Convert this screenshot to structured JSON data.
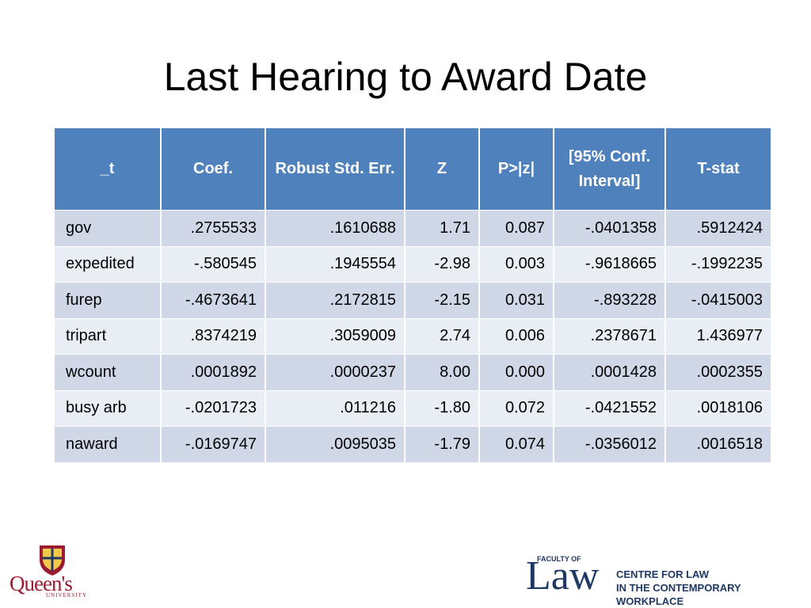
{
  "title": "Last Hearing to Award Date",
  "table": {
    "header": [
      "_t",
      "Coef.",
      "Robust Std. Err.",
      "Z",
      "P>|z|",
      "[95% Conf. Interval]",
      "T-stat"
    ],
    "rows": [
      [
        "gov",
        ".2755533",
        ".1610688",
        "1.71",
        "0.087",
        "-.0401358",
        ".5912424"
      ],
      [
        "expedited",
        "-.580545",
        ".1945554",
        "-2.98",
        "0.003",
        "-.9618665",
        "-.1992235"
      ],
      [
        "furep",
        "-.4673641",
        ".2172815",
        "-2.15",
        "0.031",
        "-.893228",
        "-.0415003"
      ],
      [
        "tripart",
        ".8374219",
        ".3059009",
        "2.74",
        "0.006",
        ".2378671",
        "1.436977"
      ],
      [
        "wcount",
        ".0001892",
        ".0000237",
        "8.00",
        "0.000",
        ".0001428",
        ".0002355"
      ],
      [
        "busy arb",
        "-.0201723",
        ".011216",
        "-1.80",
        "0.072",
        "-.0421552",
        ".0018106"
      ],
      [
        "naward",
        "-.0169747",
        ".0095035",
        "-1.79",
        "0.074",
        "-.0356012",
        ".0016518"
      ]
    ]
  },
  "logos": {
    "left": {
      "name": "Queen's",
      "sub": "UNIVERSITY"
    },
    "right": {
      "faculty": "FACULTY OF",
      "law": "Law",
      "centre": "CENTRE FOR LAW",
      "workplace": "IN THE CONTEMPORARY WORKPLACE"
    }
  }
}
